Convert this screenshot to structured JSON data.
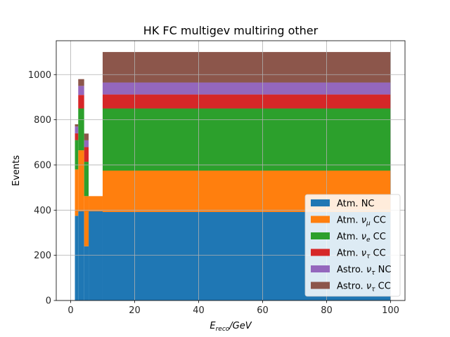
{
  "chart_data": {
    "type": "bar",
    "title": "HK FC multigev multiring other",
    "xlabel": "E_reco/GeV",
    "xlabel_parts": {
      "main": "E",
      "sub": "reco",
      "rest": "/GeV"
    },
    "ylabel": "Events",
    "xlim": [
      -4.5,
      104.5
    ],
    "ylim": [
      0,
      1150
    ],
    "xticks": [
      0,
      20,
      40,
      60,
      80,
      100
    ],
    "yticks": [
      0,
      200,
      400,
      600,
      800,
      1000
    ],
    "grid": true,
    "legend_position": "lower-right",
    "stacked": true,
    "bin_edges": [
      1.33,
      2.37,
      4.22,
      5.62,
      10.0,
      100.0
    ],
    "series": [
      {
        "name": "Atm. NC",
        "label_parts": [
          "Atm. NC"
        ],
        "color": "#1f77b4",
        "values": [
          375,
          395,
          240,
          395,
          392
        ]
      },
      {
        "name": "Atm. ν_μ CC",
        "label_parts": [
          "Atm. ",
          "ν",
          "μ",
          " CC"
        ],
        "color": "#ff7f0e",
        "values": [
          205,
          270,
          222,
          67,
          183
        ]
      },
      {
        "name": "Atm. ν_e CC",
        "label_parts": [
          "Atm. ",
          "ν",
          "e",
          " CC"
        ],
        "color": "#2ca02c",
        "values": [
          130,
          185,
          152,
          0,
          275
        ]
      },
      {
        "name": "Atm. ν_τ CC",
        "label_parts": [
          "Atm. ",
          "ν",
          "τ",
          " CC"
        ],
        "color": "#d62728",
        "values": [
          30,
          60,
          65,
          0,
          62
        ]
      },
      {
        "name": "Astro. ν_τ NC",
        "label_parts": [
          "Astro. ",
          "ν",
          "τ",
          " NC"
        ],
        "color": "#9467bd",
        "values": [
          30,
          40,
          30,
          0,
          53
        ]
      },
      {
        "name": "Astro. ν_τ CC",
        "label_parts": [
          "Astro. ",
          "ν",
          "τ",
          " CC"
        ],
        "color": "#8c564b",
        "values": [
          10,
          30,
          30,
          0,
          135
        ]
      }
    ]
  }
}
